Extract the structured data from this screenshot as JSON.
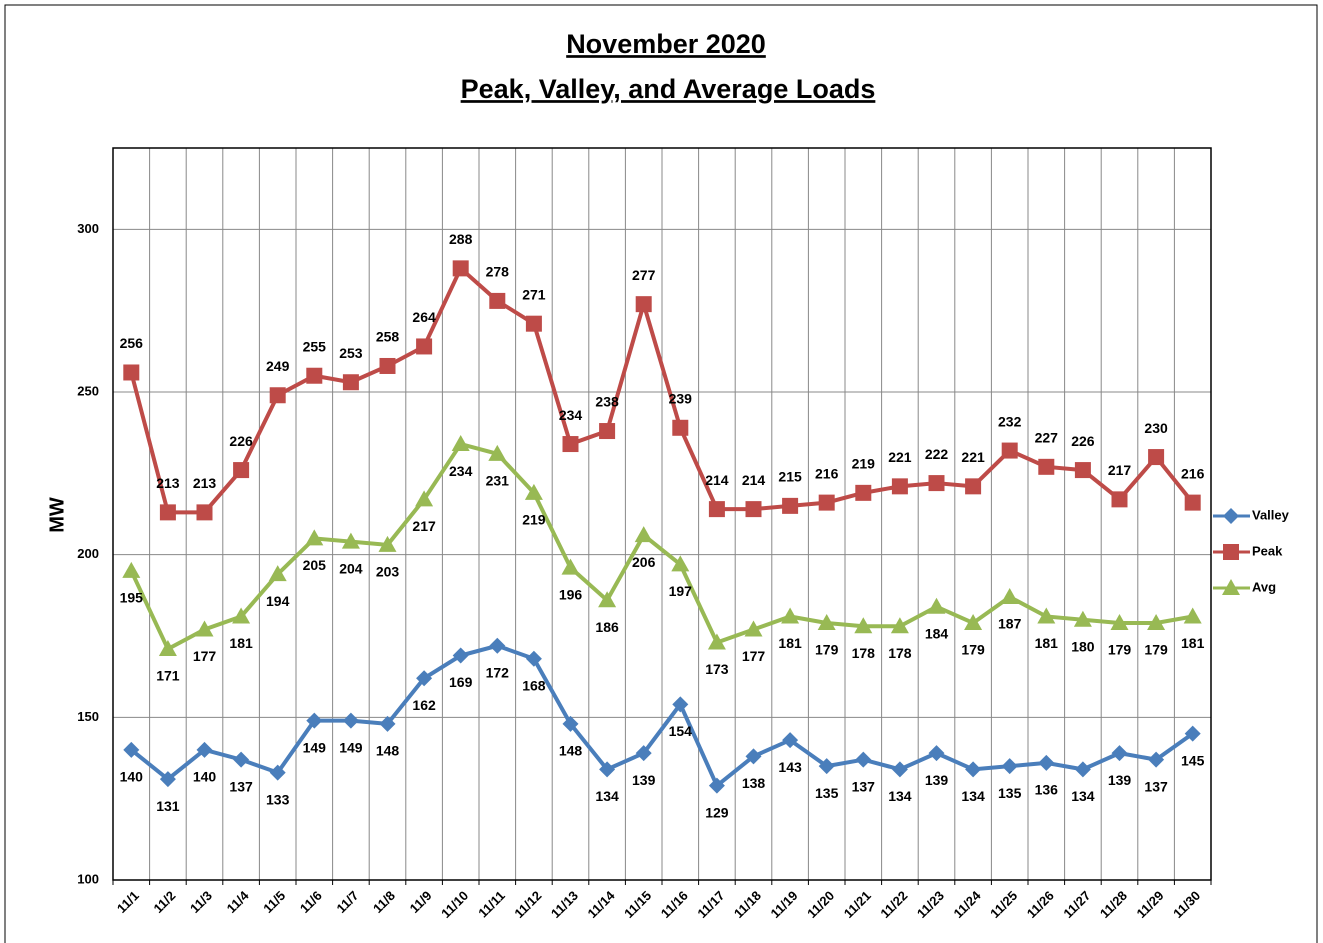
{
  "chart_data": {
    "type": "line",
    "title": "November 2020",
    "subtitle": "Peak, Valley, and Average Loads",
    "y_label": "MW",
    "categories": [
      "11/1",
      "11/2",
      "11/3",
      "11/4",
      "11/5",
      "11/6",
      "11/7",
      "11/8",
      "11/9",
      "11/10",
      "11/11",
      "11/12",
      "11/13",
      "11/14",
      "11/15",
      "11/16",
      "11/17",
      "11/18",
      "11/19",
      "11/20",
      "11/21",
      "11/22",
      "11/23",
      "11/24",
      "11/25",
      "11/26",
      "11/27",
      "11/28",
      "11/29",
      "11/30"
    ],
    "series": [
      {
        "name": "Valley",
        "color": "#4a7ebb",
        "marker": "diamond",
        "values": [
          140,
          131,
          140,
          137,
          133,
          149,
          149,
          148,
          162,
          169,
          172,
          168,
          148,
          134,
          139,
          154,
          129,
          138,
          143,
          135,
          137,
          134,
          139,
          134,
          135,
          136,
          134,
          139,
          137,
          145
        ]
      },
      {
        "name": "Peak",
        "color": "#be4b48",
        "marker": "square",
        "values": [
          256,
          213,
          213,
          226,
          249,
          255,
          253,
          258,
          264,
          288,
          278,
          271,
          234,
          238,
          277,
          239,
          214,
          214,
          215,
          216,
          219,
          221,
          222,
          221,
          232,
          227,
          226,
          217,
          230,
          216
        ]
      },
      {
        "name": "Avg",
        "color": "#98b954",
        "marker": "triangle",
        "values": [
          195,
          171,
          177,
          181,
          194,
          205,
          204,
          203,
          217,
          234,
          231,
          219,
          196,
          186,
          206,
          197,
          173,
          177,
          181,
          179,
          178,
          178,
          184,
          179,
          187,
          181,
          180,
          179,
          179,
          181
        ]
      }
    ],
    "ylim": [
      100,
      325
    ],
    "yticks": [
      100,
      150,
      200,
      250,
      300
    ],
    "grid": true,
    "legend": "right"
  }
}
